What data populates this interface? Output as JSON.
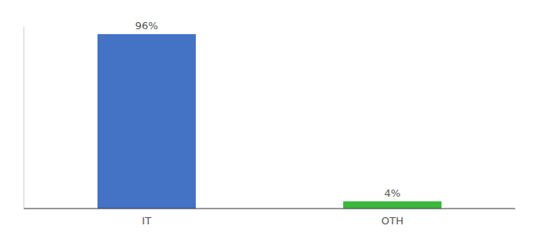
{
  "chart_data": {
    "type": "bar",
    "categories": [
      "IT",
      "OTH"
    ],
    "values": [
      96,
      4
    ],
    "value_labels": [
      "96%",
      "4%"
    ],
    "colors": [
      "#4472c4",
      "#3cb83c"
    ],
    "ylim": [
      0,
      100
    ],
    "data_labels": true,
    "tick_labels": "x",
    "grid": false
  }
}
